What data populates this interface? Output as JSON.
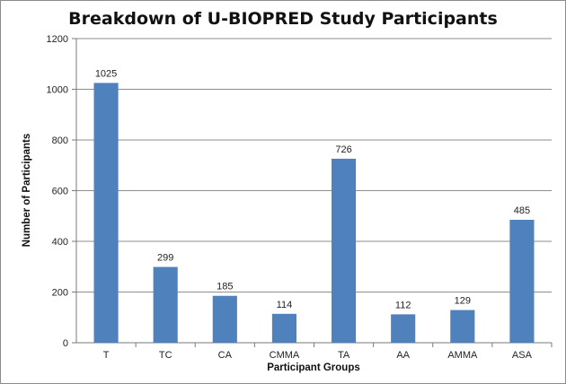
{
  "chart_data": {
    "type": "bar",
    "title": "Breakdown of U-BIOPRED Study Participants",
    "xlabel": "Participant Groups",
    "ylabel": "Number of Participants",
    "categories": [
      "T",
      "TC",
      "CA",
      "CMMA",
      "TA",
      "AA",
      "AMMA",
      "ASA"
    ],
    "values": [
      1025,
      299,
      185,
      114,
      726,
      112,
      129,
      485
    ],
    "ylim": [
      0,
      1200
    ],
    "yticks": [
      0,
      200,
      400,
      600,
      800,
      1000,
      1200
    ],
    "grid": true,
    "legend": "none",
    "bar_color": "#4f81bd",
    "data_labels": true
  }
}
